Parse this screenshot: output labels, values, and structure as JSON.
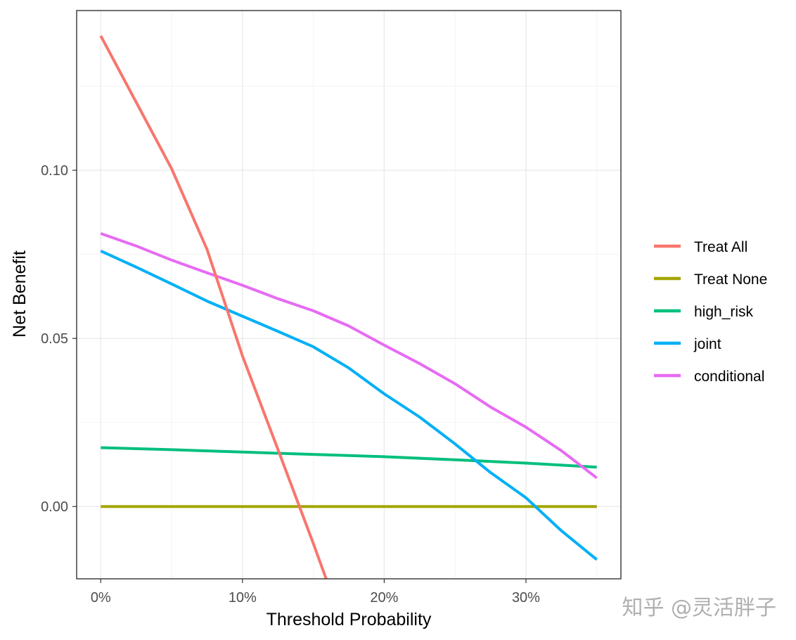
{
  "chart_data": {
    "type": "line",
    "title": "",
    "xlabel": "Threshold Probability",
    "ylabel": "Net Benefit",
    "xlim": [
      -0.017,
      0.367
    ],
    "ylim": [
      -0.0215,
      0.1475
    ],
    "x_ticks": [
      {
        "value": 0.0,
        "label": "0%"
      },
      {
        "value": 0.1,
        "label": "10%"
      },
      {
        "value": 0.2,
        "label": "20%"
      },
      {
        "value": 0.3,
        "label": "30%"
      }
    ],
    "y_ticks": [
      {
        "value": 0.0,
        "label": "0.00"
      },
      {
        "value": 0.05,
        "label": "0.05"
      },
      {
        "value": 0.1,
        "label": "0.10"
      }
    ],
    "grid": true,
    "legend_position": "right",
    "x": [
      0.0,
      0.025,
      0.05,
      0.075,
      0.1,
      0.125,
      0.15,
      0.175,
      0.2,
      0.225,
      0.25,
      0.275,
      0.3,
      0.325,
      0.35
    ],
    "series": [
      {
        "name": "Treat All",
        "color": "#F8766D",
        "points": [
          [
            0.0,
            0.14
          ],
          [
            0.05,
            0.1005
          ],
          [
            0.075,
            0.0765
          ],
          [
            0.1,
            0.0448
          ],
          [
            0.125,
            0.017
          ],
          [
            0.15,
            -0.011
          ],
          [
            0.159,
            -0.0215
          ]
        ]
      },
      {
        "name": "Treat None",
        "color": "#A3A500",
        "points": [
          [
            0.0,
            0.0
          ],
          [
            0.35,
            0.0
          ]
        ]
      },
      {
        "name": "high_risk",
        "color": "#00BF7D",
        "points": [
          [
            0.0,
            0.0175
          ],
          [
            0.05,
            0.0169
          ],
          [
            0.1,
            0.0162
          ],
          [
            0.15,
            0.0155
          ],
          [
            0.2,
            0.0148
          ],
          [
            0.25,
            0.0139
          ],
          [
            0.3,
            0.0129
          ],
          [
            0.35,
            0.0117
          ]
        ]
      },
      {
        "name": "joint",
        "color": "#00B0F6",
        "points": [
          [
            0.0,
            0.076
          ],
          [
            0.025,
            0.0712
          ],
          [
            0.05,
            0.0662
          ],
          [
            0.075,
            0.0611
          ],
          [
            0.1,
            0.0566
          ],
          [
            0.125,
            0.0521
          ],
          [
            0.15,
            0.0475
          ],
          [
            0.175,
            0.0412
          ],
          [
            0.2,
            0.0335
          ],
          [
            0.225,
            0.0266
          ],
          [
            0.25,
            0.0186
          ],
          [
            0.275,
            0.0101
          ],
          [
            0.3,
            0.0026
          ],
          [
            0.325,
            -0.0072
          ],
          [
            0.35,
            -0.0158
          ]
        ]
      },
      {
        "name": "conditional",
        "color": "#E76BF3",
        "points": [
          [
            0.0,
            0.0812
          ],
          [
            0.025,
            0.0775
          ],
          [
            0.05,
            0.0733
          ],
          [
            0.075,
            0.0695
          ],
          [
            0.1,
            0.0658
          ],
          [
            0.125,
            0.0618
          ],
          [
            0.15,
            0.0582
          ],
          [
            0.175,
            0.0537
          ],
          [
            0.2,
            0.048
          ],
          [
            0.225,
            0.0425
          ],
          [
            0.25,
            0.0365
          ],
          [
            0.275,
            0.0296
          ],
          [
            0.3,
            0.0236
          ],
          [
            0.325,
            0.0166
          ],
          [
            0.35,
            0.0085
          ]
        ]
      }
    ]
  },
  "watermark": {
    "text": "知乎 @灵活胖子"
  }
}
